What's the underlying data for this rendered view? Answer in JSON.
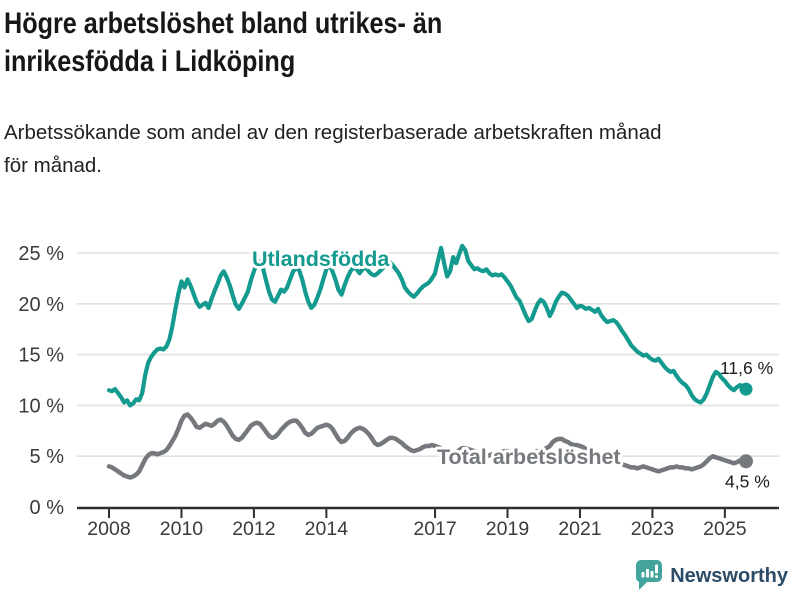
{
  "header": {
    "title_lines": [
      "Högre arbetslöshet bland utrikes- än",
      "inrikesfödda i Lidköping"
    ],
    "subtitle_lines": [
      "Arbetssökande som andel av den registerbaserade arbetskraften månad",
      "för månad."
    ]
  },
  "chart_data": {
    "type": "line",
    "frequency": "monthly",
    "x_start": "2008-01",
    "x_end": "2025-08",
    "x_tick_labels": [
      "2008",
      "2010",
      "2012",
      "2014",
      "2017",
      "2019",
      "2021",
      "2023",
      "2025"
    ],
    "y_ticks": [
      {
        "value": 0,
        "label": "0 %"
      },
      {
        "value": 5,
        "label": "5 %"
      },
      {
        "value": 10,
        "label": "10 %"
      },
      {
        "value": 15,
        "label": "15 %"
      },
      {
        "value": 20,
        "label": "20 %"
      },
      {
        "value": 25,
        "label": "25 %"
      }
    ],
    "ylim": [
      0,
      26
    ],
    "grid": "horizontal",
    "legend_position": "inline-labels",
    "series": [
      {
        "name": "Utlandsfödda",
        "color": "#149a8e",
        "end_label": "11,6 %",
        "end_value": 11.6,
        "values": [
          11.5,
          11.4,
          11.6,
          11.2,
          10.8,
          10.3,
          10.5,
          10.0,
          10.2,
          10.6,
          10.5,
          11.2,
          13.0,
          14.2,
          14.8,
          15.2,
          15.5,
          15.6,
          15.5,
          15.8,
          16.5,
          17.8,
          19.5,
          21.0,
          22.2,
          21.6,
          22.4,
          21.8,
          21.0,
          20.2,
          19.7,
          19.9,
          20.1,
          19.6,
          20.5,
          21.3,
          22.0,
          22.8,
          23.2,
          22.6,
          21.8,
          20.8,
          19.9,
          19.5,
          20.0,
          20.6,
          21.2,
          22.3,
          23.2,
          24.0,
          24.2,
          23.5,
          22.3,
          21.2,
          20.4,
          20.2,
          20.8,
          21.4,
          21.2,
          21.6,
          22.4,
          23.2,
          23.5,
          23.3,
          22.4,
          21.2,
          20.2,
          19.6,
          19.9,
          20.6,
          21.4,
          22.4,
          23.4,
          23.9,
          23.2,
          22.4,
          21.4,
          20.9,
          21.8,
          22.6,
          23.2,
          23.6,
          23.4,
          23.0,
          23.4,
          23.6,
          23.2,
          22.9,
          22.8,
          23.0,
          23.3,
          23.6,
          23.9,
          24.1,
          23.8,
          23.4,
          23.0,
          22.4,
          21.6,
          21.2,
          20.9,
          20.7,
          21.0,
          21.4,
          21.7,
          21.9,
          22.1,
          22.5,
          23.0,
          24.3,
          25.5,
          24.0,
          22.7,
          23.2,
          24.6,
          24.0,
          24.9,
          25.7,
          25.3,
          24.2,
          23.8,
          23.4,
          23.5,
          23.3,
          23.2,
          23.4,
          23.0,
          22.8,
          22.9,
          22.8,
          22.9,
          22.6,
          22.2,
          21.8,
          21.2,
          20.6,
          20.3,
          19.6,
          18.9,
          18.3,
          18.5,
          19.3,
          20.0,
          20.4,
          20.2,
          19.6,
          18.8,
          19.4,
          20.2,
          20.7,
          21.1,
          21.0,
          20.8,
          20.4,
          20.0,
          19.6,
          19.8,
          19.7,
          19.5,
          19.6,
          19.4,
          19.2,
          19.5,
          18.9,
          18.5,
          18.2,
          18.3,
          18.4,
          18.2,
          17.8,
          17.3,
          16.9,
          16.4,
          15.9,
          15.6,
          15.3,
          15.1,
          14.9,
          15.0,
          14.7,
          14.5,
          14.4,
          14.6,
          14.2,
          13.8,
          13.5,
          13.3,
          13.4,
          12.9,
          12.5,
          12.2,
          12.0,
          11.6,
          11.0,
          10.6,
          10.4,
          10.3,
          10.6,
          11.2,
          12.0,
          12.8,
          13.3,
          13.1,
          12.7,
          12.4,
          12.0,
          11.7,
          11.5,
          11.8,
          12.0,
          11.7,
          11.6
        ]
      },
      {
        "name": "Total arbetslöshet",
        "color": "#75787c",
        "end_label": "4,5 %",
        "end_value": 4.5,
        "values": [
          4.0,
          3.9,
          3.7,
          3.5,
          3.3,
          3.1,
          3.0,
          2.9,
          3.0,
          3.2,
          3.5,
          4.1,
          4.7,
          5.1,
          5.3,
          5.3,
          5.2,
          5.3,
          5.4,
          5.6,
          6.0,
          6.5,
          7.0,
          7.7,
          8.5,
          9.0,
          9.1,
          8.8,
          8.4,
          7.9,
          7.8,
          8.0,
          8.2,
          8.1,
          8.0,
          8.2,
          8.5,
          8.6,
          8.4,
          8.0,
          7.5,
          7.0,
          6.7,
          6.6,
          6.8,
          7.2,
          7.6,
          8.0,
          8.2,
          8.3,
          8.2,
          7.8,
          7.4,
          7.0,
          6.8,
          6.9,
          7.2,
          7.6,
          7.9,
          8.2,
          8.4,
          8.5,
          8.5,
          8.2,
          7.8,
          7.3,
          7.1,
          7.2,
          7.5,
          7.8,
          7.9,
          8.0,
          8.1,
          8.0,
          7.7,
          7.2,
          6.7,
          6.4,
          6.5,
          6.8,
          7.2,
          7.5,
          7.7,
          7.8,
          7.7,
          7.5,
          7.2,
          6.8,
          6.3,
          6.1,
          6.2,
          6.4,
          6.6,
          6.8,
          6.8,
          6.7,
          6.5,
          6.3,
          6.0,
          5.8,
          5.6,
          5.5,
          5.6,
          5.7,
          5.9,
          6.0,
          6.0,
          6.1,
          6.0,
          5.9,
          5.8,
          5.6,
          5.3,
          5.1,
          5.2,
          5.4,
          5.6,
          5.8,
          5.8,
          5.7,
          5.6,
          5.5,
          5.4,
          5.3,
          5.1,
          5.0,
          5.1,
          5.2,
          5.3,
          5.4,
          5.4,
          5.5,
          5.5,
          5.4,
          5.3,
          5.2,
          5.1,
          5.0,
          5.1,
          5.2,
          5.3,
          5.4,
          5.5,
          5.6,
          5.7,
          5.8,
          6.0,
          6.4,
          6.6,
          6.7,
          6.7,
          6.5,
          6.4,
          6.2,
          6.1,
          6.1,
          6.0,
          5.9,
          5.7,
          5.5,
          5.3,
          5.1,
          5.0,
          4.9,
          4.8,
          4.7,
          4.6,
          4.5,
          4.4,
          4.3,
          4.2,
          4.1,
          4.0,
          3.9,
          3.9,
          3.8,
          3.9,
          4.0,
          3.9,
          3.8,
          3.7,
          3.6,
          3.5,
          3.6,
          3.7,
          3.8,
          3.9,
          3.9,
          4.0,
          3.9,
          3.9,
          3.8,
          3.8,
          3.7,
          3.8,
          3.9,
          4.0,
          4.2,
          4.5,
          4.8,
          5.0,
          4.9,
          4.8,
          4.7,
          4.6,
          4.5,
          4.4,
          4.3,
          4.4,
          4.6,
          4.6,
          4.5
        ]
      }
    ]
  },
  "footer": {
    "brand": "Newsworthy"
  },
  "colors": {
    "accent_teal": "#149a8e",
    "line_gray": "#75787c",
    "brand_navy": "#2b4b67",
    "logo_teal": "#43a49d",
    "grid": "#e0e0e0",
    "axis": "#2f2f2f"
  }
}
